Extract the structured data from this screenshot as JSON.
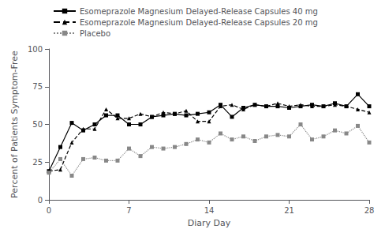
{
  "chart_data": {
    "type": "line",
    "xlabel": "Diary Day",
    "ylabel": "Percent of Patients Symptom-Free",
    "xlim": [
      0,
      28
    ],
    "ylim": [
      0,
      100
    ],
    "xticks": [
      0,
      7,
      14,
      21,
      28
    ],
    "yticks": [
      0,
      25,
      50,
      75,
      100
    ],
    "grid": false,
    "legend": "upper left",
    "x": [
      0,
      1,
      2,
      3,
      4,
      5,
      6,
      7,
      8,
      9,
      10,
      11,
      12,
      13,
      14,
      15,
      16,
      17,
      18,
      19,
      20,
      21,
      22,
      23,
      24,
      25,
      26,
      27,
      28
    ],
    "series": [
      {
        "name": "Esomeprazole Magnesium Delayed-Release Capsules 40 mg",
        "color": "#000000",
        "marker": "square",
        "line_style": "solid",
        "values": [
          19,
          35,
          51,
          46,
          50,
          56,
          56,
          50,
          50,
          55,
          56,
          57,
          56,
          57,
          58,
          63,
          55,
          61,
          63,
          62,
          62,
          61,
          62,
          63,
          62,
          64,
          62,
          70,
          62
        ]
      },
      {
        "name": "Esomeprazole Magnesium Delayed-Release Capsules 20 mg",
        "color": "#000000",
        "marker": "triangle",
        "line_style": "dashed",
        "values": [
          19,
          20,
          38,
          47,
          47,
          60,
          54,
          54,
          57,
          55,
          58,
          57,
          59,
          52,
          52,
          62,
          63,
          60,
          63,
          62,
          64,
          62,
          63,
          62,
          62,
          63,
          62,
          60,
          58
        ]
      },
      {
        "name": "Placebo",
        "color": "#888888",
        "marker": "square",
        "line_style": "dotted",
        "values": [
          18,
          27,
          16,
          27,
          28,
          26,
          26,
          34,
          29,
          35,
          34,
          35,
          37,
          40,
          38,
          44,
          40,
          42,
          39,
          42,
          43,
          42,
          50,
          40,
          42,
          46,
          44,
          49,
          38
        ]
      }
    ]
  }
}
